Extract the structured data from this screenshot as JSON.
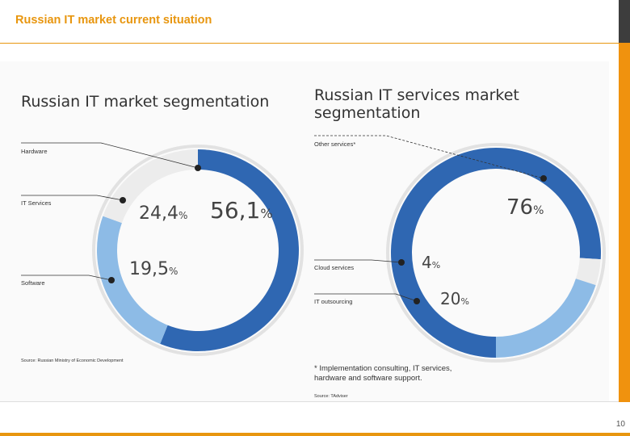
{
  "header": {
    "title": "Russian IT market current situation",
    "page_number": "10"
  },
  "chart_data": [
    {
      "type": "pie",
      "title": "Russian IT market segmentation",
      "categories": [
        "Hardware",
        "IT Services",
        "Software"
      ],
      "values": [
        56.1,
        24.4,
        19.5
      ],
      "value_labels": [
        "56,1",
        "24,4",
        "19,5"
      ],
      "unit": "%",
      "colors": [
        "#2f67b2",
        "#8dbbe6",
        "#ececec"
      ],
      "source": "Source: Russian Ministry of Economic Development"
    },
    {
      "type": "pie",
      "title": "Russian IT services market segmentation",
      "categories": [
        "Other services*",
        "Cloud services",
        "IT outsourcing"
      ],
      "values": [
        76,
        4,
        20
      ],
      "value_labels": [
        "76",
        "4",
        "20"
      ],
      "unit": "%",
      "colors": [
        "#2f67b2",
        "#ececec",
        "#8dbbe6"
      ],
      "footnote": "* Implementation consulting, IT services, hardware and software support.",
      "source": "Source: TAdviser"
    }
  ]
}
